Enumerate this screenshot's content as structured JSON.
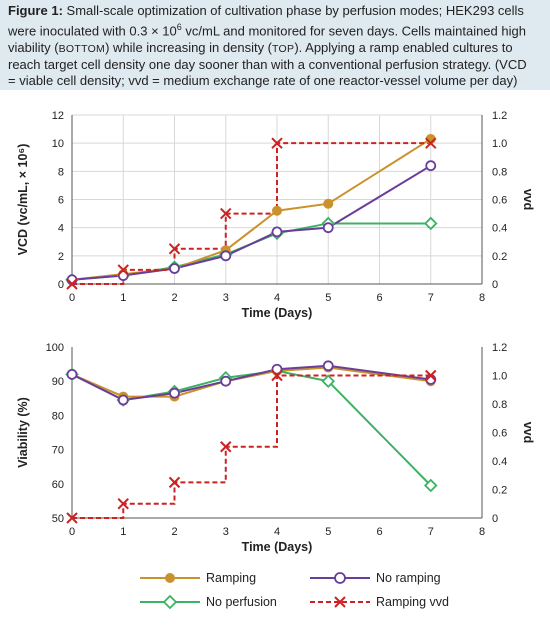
{
  "caption": {
    "label": "Figure 1:",
    "line1_rest": " Small-scale optimization of cultivation phase by perfusion modes; HEK293 cells",
    "line2a": "were inoculated with 0.3 × 10",
    "line2_sup": "6",
    "line2b": " vc/mL and monitored for seven days. Cells maintained high",
    "line3a": "viability (",
    "line3_bottom": "BOTTOM",
    "line3b": ") while increasing in density (",
    "line3_top": "TOP",
    "line3c": "). Applying a ramp enabled cultures to",
    "line4": "reach target cell density one day sooner than with a conventional perfusion strategy. (VCD",
    "line5": "= viable cell density; vvd = medium exchange rate of one reactor-vessel volume per day)"
  },
  "colors": {
    "ramping": "#c9922c",
    "no_ramping": "#6a3d9a",
    "no_perfusion": "#3cb363",
    "ramping_vvd": "#cc2222",
    "grid": "#d8d8d8",
    "axis": "#555555"
  },
  "legend": {
    "ramping": "Ramping",
    "no_ramping": "No ramping",
    "no_perfusion": "No perfusion",
    "ramping_vvd": "Ramping vvd"
  },
  "chart_data": [
    {
      "type": "line",
      "xlabel": "Time (Days)",
      "ylabel_left": "VCD (vc/mL, × 10⁶)",
      "ylabel_right": "vvd",
      "x_ticks": [
        "0",
        "1",
        "2",
        "3",
        "4",
        "5",
        "6",
        "7",
        "8"
      ],
      "y_left_ticks": [
        "0",
        "2",
        "4",
        "6",
        "8",
        "10",
        "12"
      ],
      "y_right_ticks": [
        "0",
        "0.2",
        "0.4",
        "0.6",
        "0.8",
        "1.0",
        "1.2"
      ],
      "xlim": [
        0,
        8
      ],
      "ylim_left": [
        0,
        12
      ],
      "ylim_right": [
        0,
        1.2
      ],
      "grid": true,
      "series": [
        {
          "name": "Ramping",
          "axis": "left",
          "x": [
            0,
            1,
            2,
            3,
            4,
            5,
            7
          ],
          "y": [
            0.3,
            0.7,
            1.1,
            2.4,
            5.2,
            5.7,
            10.3
          ]
        },
        {
          "name": "No ramping",
          "axis": "left",
          "x": [
            0,
            1,
            2,
            3,
            4,
            5,
            7
          ],
          "y": [
            0.3,
            0.6,
            1.1,
            2.0,
            3.7,
            4.0,
            8.4
          ]
        },
        {
          "name": "No perfusion",
          "axis": "left",
          "x": [
            0,
            1,
            2,
            3,
            4,
            5,
            7
          ],
          "y": [
            0.3,
            0.6,
            1.2,
            2.1,
            3.6,
            4.3,
            4.3
          ]
        },
        {
          "name": "Ramping vvd",
          "axis": "right",
          "step": true,
          "x": [
            0,
            1,
            2,
            3,
            4,
            7
          ],
          "y": [
            0.0,
            0.1,
            0.25,
            0.5,
            1.0,
            1.0
          ]
        }
      ]
    },
    {
      "type": "line",
      "xlabel": "Time (Days)",
      "ylabel_left": "Viability (%)",
      "ylabel_right": "vvd",
      "x_ticks": [
        "0",
        "1",
        "2",
        "3",
        "4",
        "5",
        "6",
        "7",
        "8"
      ],
      "y_left_ticks": [
        "50",
        "60",
        "70",
        "80",
        "90",
        "100"
      ],
      "y_right_ticks": [
        "0",
        "0.2",
        "0.4",
        "0.6",
        "0.8",
        "1.0",
        "1.2"
      ],
      "xlim": [
        0,
        8
      ],
      "ylim_left": [
        50,
        100
      ],
      "ylim_right": [
        0,
        1.2
      ],
      "grid": false,
      "series": [
        {
          "name": "Ramping",
          "axis": "left",
          "x": [
            0,
            1,
            2,
            3,
            4,
            5,
            7
          ],
          "y": [
            92,
            85.5,
            85.5,
            90,
            93,
            94,
            90
          ]
        },
        {
          "name": "No ramping",
          "axis": "left",
          "x": [
            0,
            1,
            2,
            3,
            4,
            5,
            7
          ],
          "y": [
            92,
            84.5,
            86.5,
            90,
            93.5,
            94.5,
            90.5
          ]
        },
        {
          "name": "No perfusion",
          "axis": "left",
          "x": [
            0,
            1,
            2,
            3,
            4,
            5,
            7
          ],
          "y": [
            92,
            84.5,
            87,
            91,
            93,
            90,
            59.5
          ]
        },
        {
          "name": "Ramping vvd",
          "axis": "right",
          "step": true,
          "x": [
            0,
            1,
            2,
            3,
            4,
            7
          ],
          "y": [
            0.0,
            0.1,
            0.25,
            0.5,
            1.0,
            1.0
          ]
        }
      ]
    }
  ]
}
